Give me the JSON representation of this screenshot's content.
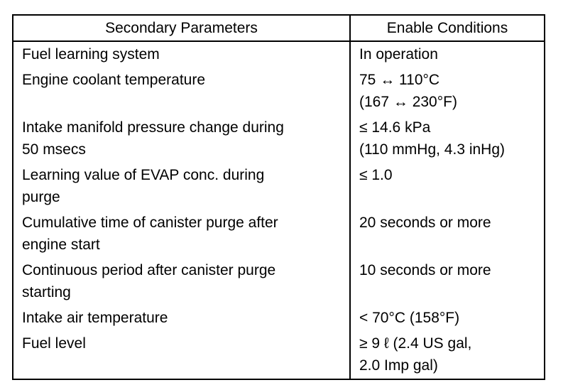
{
  "table": {
    "header": [
      "Secondary Parameters",
      "Enable Conditions"
    ],
    "rows": [
      {
        "parameter": [
          "Fuel learning system"
        ],
        "condition": [
          "In operation"
        ]
      },
      {
        "parameter": [
          "Engine coolant temperature"
        ],
        "condition": [
          "75 ↔ 110°C",
          "(167 ↔ 230°F)"
        ]
      },
      {
        "parameter": [
          "Intake manifold pressure change during",
          "50 msecs"
        ],
        "condition": [
          "≤ 14.6 kPa",
          "(110 mmHg, 4.3 inHg)"
        ]
      },
      {
        "parameter": [
          "Learning value of EVAP conc. during",
          "purge"
        ],
        "condition": [
          "≤ 1.0"
        ]
      },
      {
        "parameter": [
          "Cumulative time of canister purge after",
          "engine start"
        ],
        "condition": [
          "20 seconds or more"
        ]
      },
      {
        "parameter": [
          "Continuous period after canister purge",
          "starting"
        ],
        "condition": [
          "10 seconds or more"
        ]
      },
      {
        "parameter": [
          "Intake air temperature"
        ],
        "condition": [
          "< 70°C (158°F)"
        ]
      },
      {
        "parameter": [
          "Fuel level"
        ],
        "condition": [
          "≥ 9 ℓ (2.4 US gal,",
          "2.0 Imp gal)"
        ]
      }
    ]
  }
}
